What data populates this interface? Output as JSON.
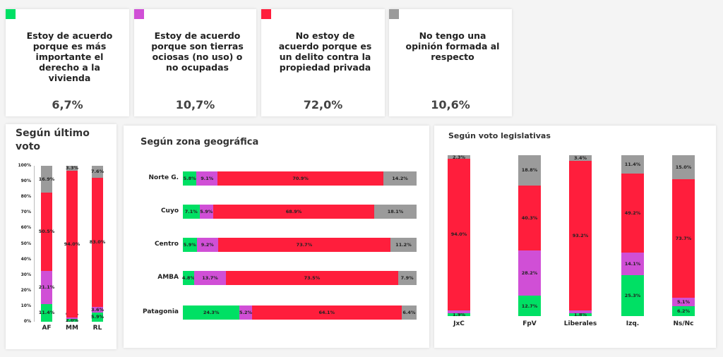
{
  "colors": {
    "acuerdo_vivienda": "#00e064",
    "acuerdo_ociosas": "#d04fd6",
    "desacuerdo": "#ff1e3c",
    "sin_opinion": "#9b9b9b"
  },
  "legend_cards": [
    {
      "text": "Estoy de acuerdo porque es más importante el derecho a la vivienda",
      "value": "6,7%",
      "color": "#00e064"
    },
    {
      "text": "Estoy de acuerdo porque son tierras ociosas (no uso) o no ocupadas",
      "value": "10,7%",
      "color": "#d04fd6"
    },
    {
      "text": "No estoy de acuerdo porque es un delito contra la propiedad privada",
      "value": "72,0%",
      "color": "#ff1e3c"
    },
    {
      "text": "No tengo una opinión formada al respecto",
      "value": "10,6%",
      "color": "#9b9b9b"
    }
  ],
  "chart_data": [
    {
      "type": "bar",
      "stacked": true,
      "orientation": "vertical",
      "title": "Según último voto",
      "categories": [
        "AF",
        "MM",
        "RL"
      ],
      "yticks": [
        "0%",
        "10%",
        "20%",
        "30%",
        "40%",
        "50%",
        "60%",
        "70%",
        "80%",
        "90%",
        "100%"
      ],
      "ylim": [
        0,
        100
      ],
      "series": [
        {
          "values": [
            11.4,
            2.0,
            5.9
          ],
          "labels": [
            "11.4%",
            "2.0%",
            "5.9%"
          ]
        },
        {
          "values": [
            21.1,
            0.8,
            3.6
          ],
          "labels": [
            "21.1%",
            "0.8%",
            "3.6%"
          ]
        },
        {
          "values": [
            50.5,
            94.0,
            83.0
          ],
          "labels": [
            "50.5%",
            "94.0%",
            "83.0%"
          ]
        },
        {
          "values": [
            16.9,
            3.3,
            7.6
          ],
          "labels": [
            "16.9%",
            "3.3%",
            "7.6%"
          ]
        }
      ]
    },
    {
      "type": "bar",
      "stacked": true,
      "orientation": "horizontal",
      "title": "Según zona geográfica",
      "categories": [
        "Norte G.",
        "Cuyo",
        "Centro",
        "AMBA",
        "Patagonia"
      ],
      "series": [
        {
          "values": [
            5.8,
            7.1,
            5.9,
            4.8,
            24.3
          ],
          "labels": [
            "5.8%",
            "7.1%",
            "5.9%",
            "4.8%",
            "24.3%"
          ]
        },
        {
          "values": [
            9.1,
            5.9,
            9.2,
            13.7,
            5.2
          ],
          "labels": [
            "9.1%",
            "5.9%",
            "9.2%",
            "13.7%",
            "5.2%"
          ]
        },
        {
          "values": [
            70.9,
            68.9,
            73.7,
            73.5,
            64.1
          ],
          "labels": [
            "70.9%",
            "68.9%",
            "73.7%",
            "73.5%",
            "64.1%"
          ]
        },
        {
          "values": [
            14.2,
            18.1,
            11.2,
            7.9,
            6.4
          ],
          "labels": [
            "14.2%",
            "18.1%",
            "11.2%",
            "7.9%",
            "6.4%"
          ]
        }
      ]
    },
    {
      "type": "bar",
      "stacked": true,
      "orientation": "vertical",
      "title": "Según voto legislativas",
      "categories": [
        "JxC",
        "FpV",
        "Liberales",
        "Izq.",
        "Ns/Nc"
      ],
      "series": [
        {
          "values": [
            1.9,
            12.7,
            1.8,
            25.3,
            6.2
          ],
          "labels": [
            "1.9%",
            "12.7%",
            "1.8%",
            "25.3%",
            "6.2%"
          ]
        },
        {
          "values": [
            1.8,
            28.2,
            1.6,
            14.1,
            5.1
          ],
          "labels": [
            "1.8%",
            "28.2%",
            "1.6%",
            "14.1%",
            "5.1%"
          ]
        },
        {
          "values": [
            94.0,
            40.3,
            93.2,
            49.2,
            73.7
          ],
          "labels": [
            "94.0%",
            "40.3%",
            "93.2%",
            "49.2%",
            "73.7%"
          ]
        },
        {
          "values": [
            2.3,
            18.8,
            3.4,
            11.4,
            15.0
          ],
          "labels": [
            "2.3%",
            "18.8%",
            "3.4%",
            "11.4%",
            "15.0%"
          ]
        }
      ]
    }
  ]
}
